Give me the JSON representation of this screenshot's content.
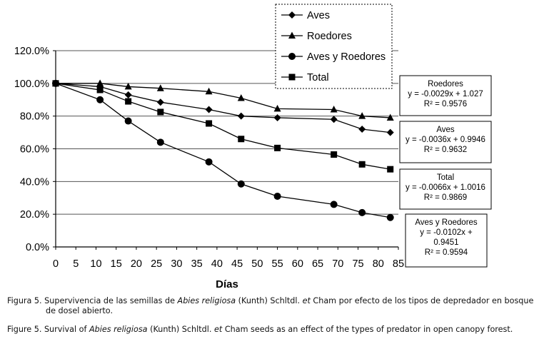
{
  "chart_data": {
    "type": "line",
    "xlabel": "Días",
    "ylabel": "",
    "xlim": [
      0,
      85
    ],
    "ylim": [
      0,
      120
    ],
    "x_ticks": [
      0,
      5,
      10,
      15,
      20,
      25,
      30,
      35,
      40,
      45,
      50,
      55,
      60,
      65,
      70,
      75,
      80,
      85
    ],
    "y_ticks": [
      "0.0%",
      "20.0%",
      "40.0%",
      "60.0%",
      "80.0%",
      "100.0%",
      "120.0%"
    ],
    "y_tick_values": [
      0,
      20,
      40,
      60,
      80,
      100,
      120
    ],
    "grid": "horizontal",
    "legend_position": "top-right",
    "series": [
      {
        "name": "Aves",
        "marker": "diamond",
        "x": [
          0,
          11,
          18,
          26,
          38,
          46,
          55,
          69,
          76,
          83
        ],
        "y": [
          100,
          98,
          93,
          88.5,
          84,
          80,
          79,
          78,
          72,
          70
        ]
      },
      {
        "name": "Roedores",
        "marker": "triangle",
        "x": [
          0,
          11,
          18,
          26,
          38,
          46,
          55,
          69,
          76,
          83
        ],
        "y": [
          100,
          100,
          98,
          97,
          95,
          91,
          84.5,
          84,
          80,
          79
        ]
      },
      {
        "name": "Aves y Roedores",
        "marker": "circle",
        "x": [
          0,
          11,
          18,
          26,
          38,
          46,
          55,
          69,
          76,
          83
        ],
        "y": [
          100,
          90,
          77,
          64,
          52,
          38.5,
          31,
          26,
          21,
          18
        ]
      },
      {
        "name": "Total",
        "marker": "square",
        "x": [
          0,
          11,
          18,
          26,
          38,
          46,
          55,
          69,
          76,
          83
        ],
        "y": [
          100,
          96,
          89,
          82.5,
          75.5,
          66,
          60.5,
          56.5,
          50.5,
          47.5
        ]
      }
    ],
    "annotations": [
      {
        "lines": [
          "Roedores",
          "y = -0.0029x + 1.027",
          "R² = 0.9576"
        ]
      },
      {
        "lines": [
          "Aves",
          "y = -0.0036x + 0.9946",
          "R² = 0.9632"
        ]
      },
      {
        "lines": [
          "Total",
          "y = -0.0066x + 1.0016",
          "R² = 0.9869"
        ]
      },
      {
        "lines": [
          "Aves y Roedores",
          "y = -0.0102x +",
          "0.9451",
          "R² = 0.9594"
        ]
      }
    ]
  },
  "caption": {
    "es_prefix": "Figura 5. Supervivencia de las semillas de ",
    "es_species": "Abies religiosa",
    "es_mid": " (Kunth) Schltdl. ",
    "es_et": "et",
    "es_suffix": " Cham por efecto de los tipos de depredador en bosque",
    "es_line2": "de dosel abierto.",
    "en_prefix": "Figure 5. Survival of ",
    "en_species": "Abies religiosa",
    "en_mid": " (Kunth) Schltdl. ",
    "en_et": "et",
    "en_suffix": " Cham seeds as an effect of the types of predator in open canopy forest."
  }
}
